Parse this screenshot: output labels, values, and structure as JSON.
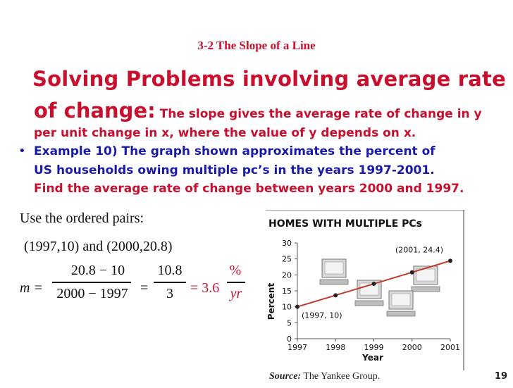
{
  "slide": {
    "title": "3-2 The Slope of a Line",
    "heading_line1": "Solving Problems involving average rate",
    "heading_line2_big": "of change:",
    "heading_line2_small": " The slope gives the average rate of change in y",
    "heading_line3": "per unit change in x, where the value of y depends on x.",
    "bullet": "•",
    "example_line1": "Example 10) The graph shown approximates the percent of",
    "example_line2": "US households owing multiple pc’s in the years 1997-2001.",
    "example_line3": "Find the average rate of change between years 2000 and 1997.",
    "use_pairs": "Use the ordered pairs:",
    "pairs": "(1997,10) and (2000,20.8)",
    "page_number": "19"
  },
  "equation": {
    "lhs": "m =",
    "num1": "20.8 − 10",
    "den1": "2000 − 1997",
    "eq2": "=",
    "num2": "10.8",
    "den2": "3",
    "eq3": "= 3.6",
    "num3": "%",
    "den3": "yr"
  },
  "chart_data": {
    "type": "line",
    "title": "HOMES WITH MULTIPLE PCs",
    "xlabel": "Year",
    "ylabel": "Percent",
    "x": [
      1997,
      1998,
      1999,
      2000,
      2001
    ],
    "y": [
      10,
      13.6,
      17.2,
      20.8,
      24.4
    ],
    "xticks": [
      "1997",
      "1998",
      "1999",
      "2000",
      "2001"
    ],
    "yticks": [
      "0",
      "5",
      "10",
      "15",
      "20",
      "25",
      "30"
    ],
    "ylim": [
      0,
      30
    ],
    "xlim": [
      1997,
      2001
    ],
    "annotations": [
      "(1997, 10)",
      "(2001, 24.4)"
    ],
    "source_label": "Source:",
    "source_text": "The Yankee Group.",
    "colors": {
      "line": "#c0392b",
      "point": "#222222",
      "grid": "#cccccc"
    }
  }
}
